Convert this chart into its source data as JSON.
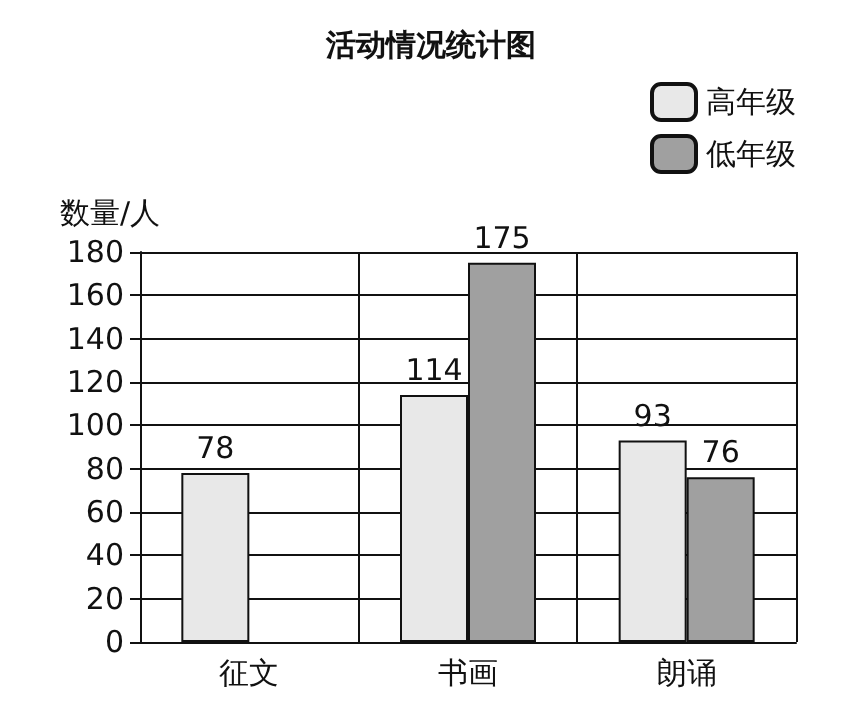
{
  "chart_data": {
    "type": "bar",
    "title": "活动情况统计图",
    "ylabel": "数量/人",
    "categories": [
      "征文",
      "书画",
      "朗诵"
    ],
    "series": [
      {
        "name": "高年级",
        "color": "#e8e8e8",
        "values": [
          78,
          114,
          93
        ]
      },
      {
        "name": "低年级",
        "color": "#a0a0a0",
        "values": [
          null,
          175,
          76
        ]
      }
    ],
    "ylim": [
      0,
      180
    ],
    "yticks": [
      0,
      20,
      40,
      60,
      80,
      100,
      120,
      140,
      160,
      180
    ],
    "grid": true,
    "legend": "top right",
    "data_labels": true
  }
}
